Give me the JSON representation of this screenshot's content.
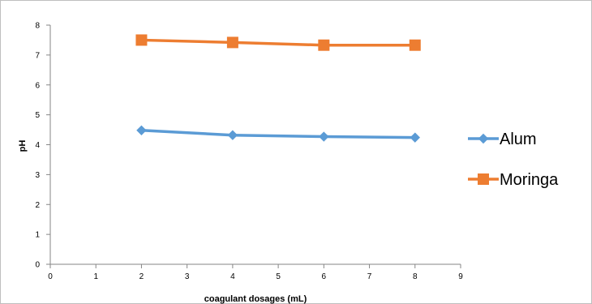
{
  "chart_data": {
    "type": "line",
    "title": "",
    "xlabel": "coagulant dosages (mL)",
    "ylabel": "pH",
    "xlim": [
      0,
      9
    ],
    "ylim": [
      0,
      8
    ],
    "xticks": [
      0,
      1,
      2,
      3,
      4,
      5,
      6,
      7,
      8,
      9
    ],
    "yticks": [
      0,
      1,
      2,
      3,
      4,
      5,
      6,
      7,
      8
    ],
    "grid": false,
    "legend_position": "right",
    "series": [
      {
        "name": "Alum",
        "color": "#5B9BD5",
        "marker": "diamond",
        "x": [
          2,
          4,
          6,
          8
        ],
        "y": [
          4.48,
          4.32,
          4.27,
          4.24
        ]
      },
      {
        "name": "Moringa",
        "color": "#ED7D31",
        "marker": "square",
        "x": [
          2,
          4,
          6,
          8
        ],
        "y": [
          7.5,
          7.42,
          7.33,
          7.33
        ]
      }
    ]
  }
}
